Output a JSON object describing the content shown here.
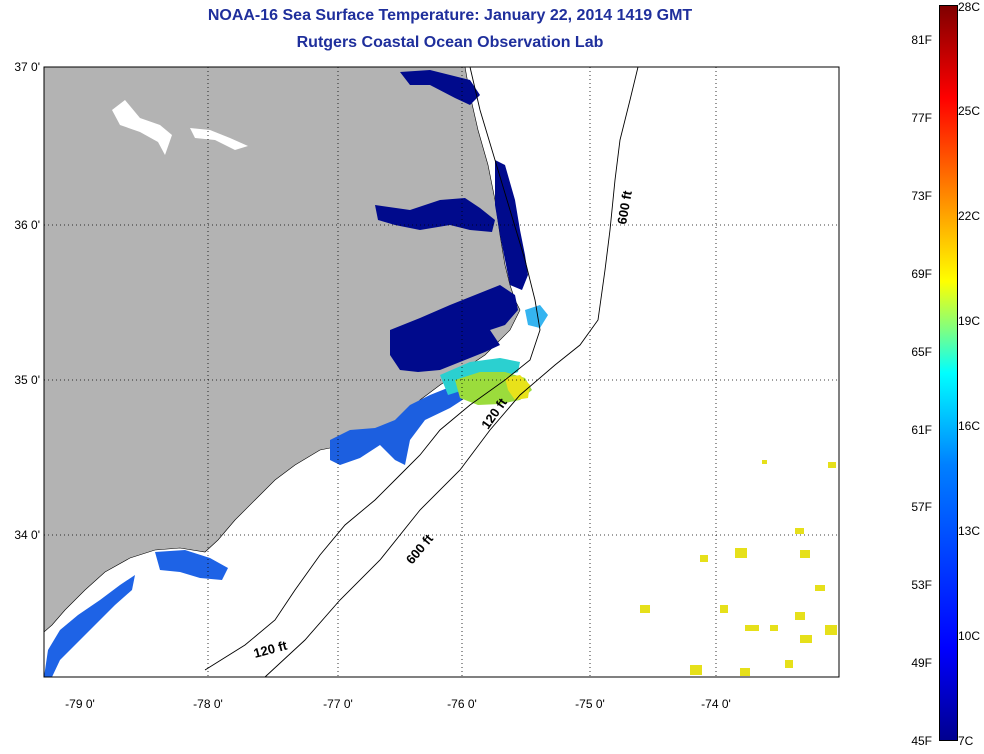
{
  "header": {
    "title": "NOAA-16 Sea Surface Temperature:  January 22, 2014 1419 GMT",
    "subtitle": "Rutgers Coastal Ocean Observation Lab"
  },
  "map": {
    "lat_labels": [
      "37 0'",
      "36 0'",
      "35 0'",
      "34 0'"
    ],
    "lon_labels": [
      "-79 0'",
      "-78 0'",
      "-77 0'",
      "-76 0'",
      "-75 0'",
      "-74 0'"
    ],
    "land_color": "#b3b3b3",
    "ocean_color": "#ffffff",
    "grid_style": "dotted",
    "contours": [
      {
        "label": "600 ft"
      },
      {
        "label": "120 ft"
      },
      {
        "label": "600 ft"
      },
      {
        "label": "120 ft"
      }
    ]
  },
  "colorbar": {
    "fahrenheit_labels": [
      "81F",
      "77F",
      "73F",
      "69F",
      "65F",
      "61F",
      "57F",
      "53F",
      "49F",
      "45F"
    ],
    "celsius_labels": [
      "28C",
      "25C",
      "22C",
      "19C",
      "16C",
      "13C",
      "10C",
      "7C"
    ],
    "range_c": [
      7,
      28
    ],
    "range_f": [
      45,
      82
    ],
    "colors": [
      "#00008f",
      "#0000ff",
      "#0080ff",
      "#00ffff",
      "#80ff80",
      "#ffff00",
      "#ff8000",
      "#ff0000",
      "#800000"
    ]
  }
}
